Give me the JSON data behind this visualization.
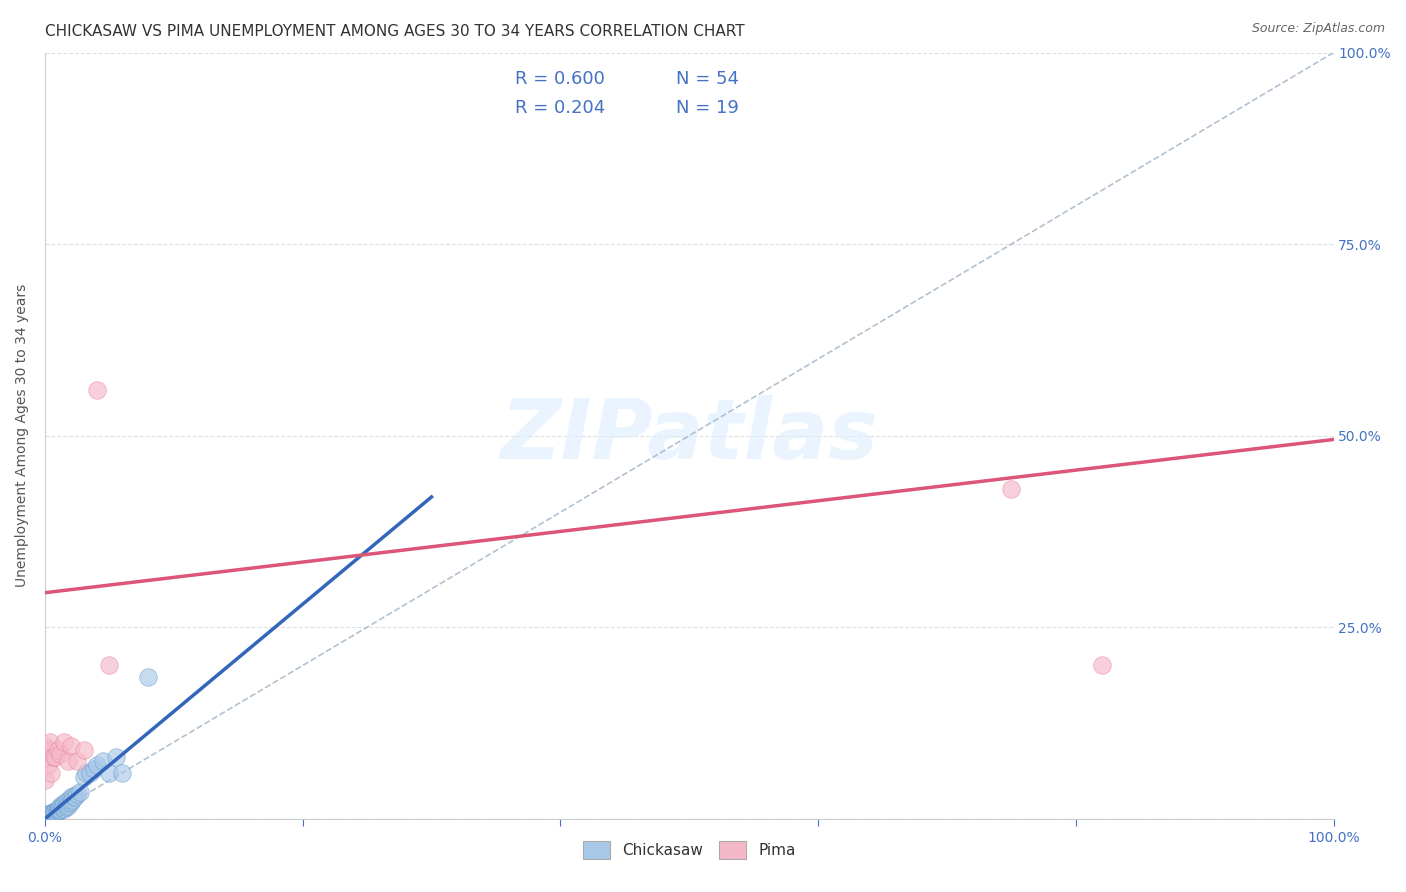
{
  "title": "CHICKASAW VS PIMA UNEMPLOYMENT AMONG AGES 30 TO 34 YEARS CORRELATION CHART",
  "source": "Source: ZipAtlas.com",
  "ylabel": "Unemployment Among Ages 30 to 34 years",
  "xlim": [
    0,
    1.0
  ],
  "ylim": [
    0,
    1.0
  ],
  "xticks": [
    0.0,
    0.2,
    0.4,
    0.6,
    0.8,
    1.0
  ],
  "yticks": [
    0.0,
    0.25,
    0.5,
    0.75,
    1.0
  ],
  "xticklabels": [
    "0.0%",
    "",
    "",
    "",
    "",
    "100.0%"
  ],
  "right_yticklabels": [
    "",
    "25.0%",
    "50.0%",
    "75.0%",
    "100.0%"
  ],
  "watermark": "ZIPatlas",
  "legend_r1": "R = 0.600",
  "legend_n1": "N = 54",
  "legend_r2": "R = 0.204",
  "legend_n2": "N = 19",
  "blue_color": "#a8c8e8",
  "blue_edge_color": "#6699cc",
  "pink_color": "#f5b8c8",
  "pink_edge_color": "#e88099",
  "blue_line_color": "#3366bb",
  "pink_line_color": "#dd5577",
  "ref_line_color": "#aabbcc",
  "grid_color": "#dddddd",
  "tick_color": "#4472c4",
  "title_color": "#333333",
  "ylabel_color": "#555555",
  "source_color": "#666666",
  "watermark_color": "#ddeeff",
  "chickasaw_x": [
    0.0,
    0.0,
    0.0,
    0.0,
    0.002,
    0.003,
    0.003,
    0.004,
    0.004,
    0.005,
    0.005,
    0.005,
    0.006,
    0.006,
    0.007,
    0.007,
    0.008,
    0.008,
    0.009,
    0.009,
    0.01,
    0.01,
    0.011,
    0.011,
    0.012,
    0.012,
    0.013,
    0.013,
    0.014,
    0.015,
    0.015,
    0.016,
    0.016,
    0.017,
    0.018,
    0.018,
    0.019,
    0.02,
    0.02,
    0.021,
    0.022,
    0.023,
    0.025,
    0.027,
    0.03,
    0.032,
    0.035,
    0.038,
    0.04,
    0.045,
    0.05,
    0.055,
    0.06,
    0.08
  ],
  "chickasaw_y": [
    0.0,
    0.002,
    0.003,
    0.005,
    0.003,
    0.004,
    0.006,
    0.005,
    0.007,
    0.004,
    0.006,
    0.008,
    0.005,
    0.008,
    0.006,
    0.009,
    0.007,
    0.01,
    0.008,
    0.011,
    0.01,
    0.013,
    0.011,
    0.014,
    0.012,
    0.016,
    0.014,
    0.018,
    0.016,
    0.013,
    0.02,
    0.015,
    0.022,
    0.018,
    0.017,
    0.025,
    0.02,
    0.022,
    0.028,
    0.025,
    0.03,
    0.028,
    0.032,
    0.035,
    0.055,
    0.06,
    0.06,
    0.065,
    0.07,
    0.075,
    0.06,
    0.08,
    0.06,
    0.185
  ],
  "pima_x": [
    0.0,
    0.0,
    0.002,
    0.003,
    0.004,
    0.005,
    0.006,
    0.008,
    0.01,
    0.012,
    0.015,
    0.018,
    0.02,
    0.025,
    0.03,
    0.04,
    0.05,
    0.75,
    0.82
  ],
  "pima_y": [
    0.05,
    0.095,
    0.07,
    0.09,
    0.1,
    0.06,
    0.08,
    0.08,
    0.09,
    0.085,
    0.1,
    0.075,
    0.095,
    0.075,
    0.09,
    0.56,
    0.2,
    0.43,
    0.2
  ],
  "blue_trend_x": [
    0.0,
    0.3
  ],
  "blue_trend_y": [
    0.0,
    0.42
  ],
  "pink_trend_x": [
    0.0,
    1.0
  ],
  "pink_trend_y": [
    0.295,
    0.495
  ],
  "title_fontsize": 11,
  "axis_label_fontsize": 10,
  "tick_fontsize": 10,
  "legend_fontsize": 13,
  "source_fontsize": 9,
  "watermark_fontsize": 60,
  "scatter_size": 160,
  "scatter_alpha": 0.65
}
